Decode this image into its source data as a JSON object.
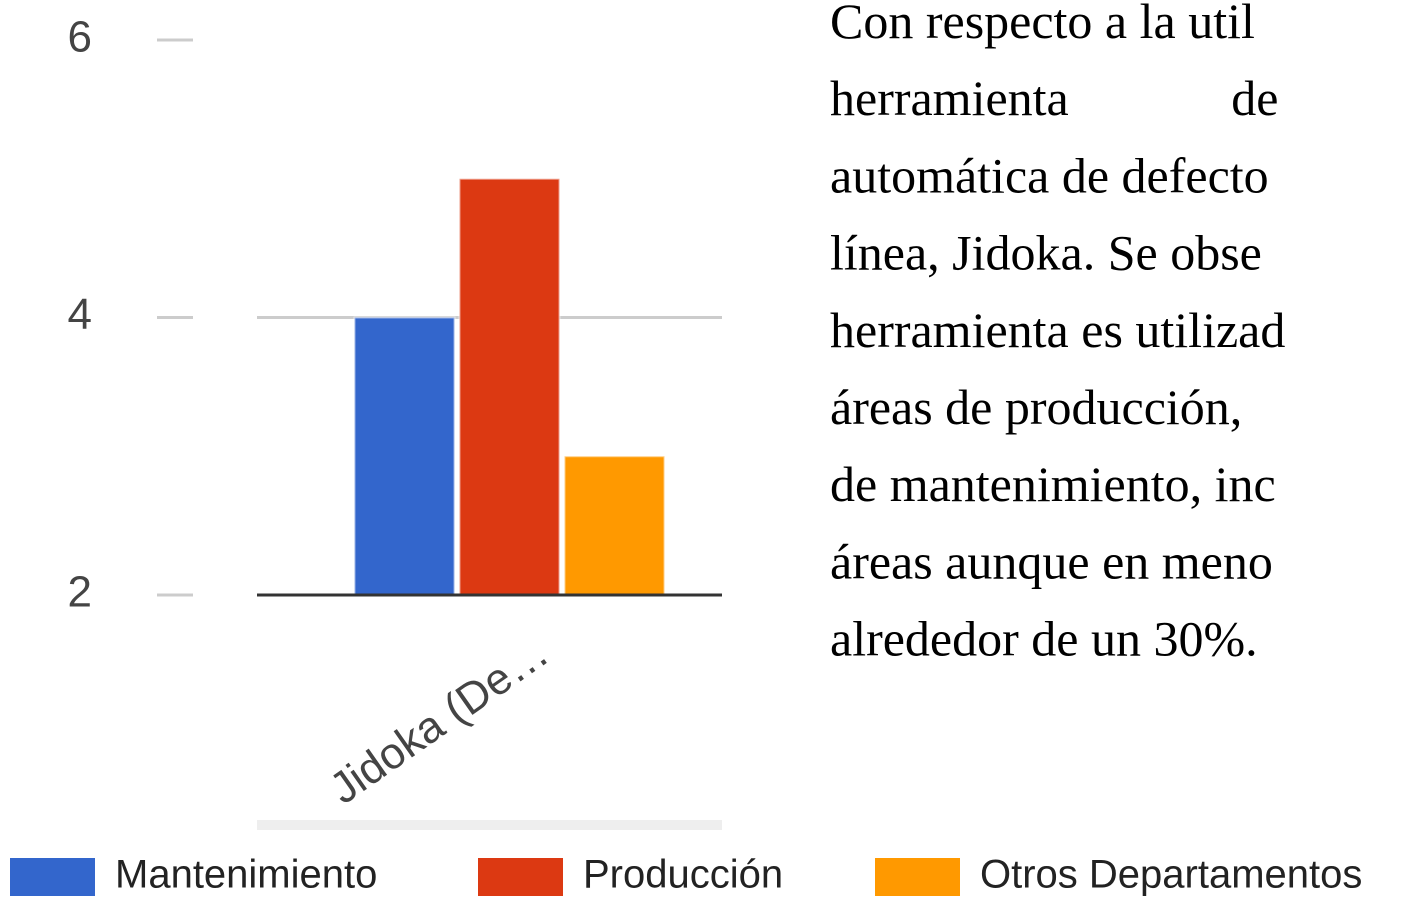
{
  "chart_data": {
    "type": "bar",
    "categories": [
      "Jidoka (De…"
    ],
    "series": [
      {
        "name": "Mantenimiento",
        "color": "#3366cc",
        "values": [
          4
        ]
      },
      {
        "name": "Producción",
        "color": "#dc3912",
        "values": [
          5
        ]
      },
      {
        "name": "Otros Departamentos",
        "color": "#ff9900",
        "values": [
          3
        ]
      }
    ],
    "ylim": [
      2,
      6
    ],
    "yticks": [
      2,
      4,
      6
    ],
    "grid": true,
    "legend": "bottom"
  },
  "paragraph": [
    "Con respecto a la util",
    "herramienta de",
    "automática de defecto",
    "línea, Jidoka. Se obse",
    "herramienta es utilizad",
    "áreas de producción,",
    "de mantenimiento, inc",
    "áreas aunque en meno",
    "alrededor de un 30%."
  ]
}
